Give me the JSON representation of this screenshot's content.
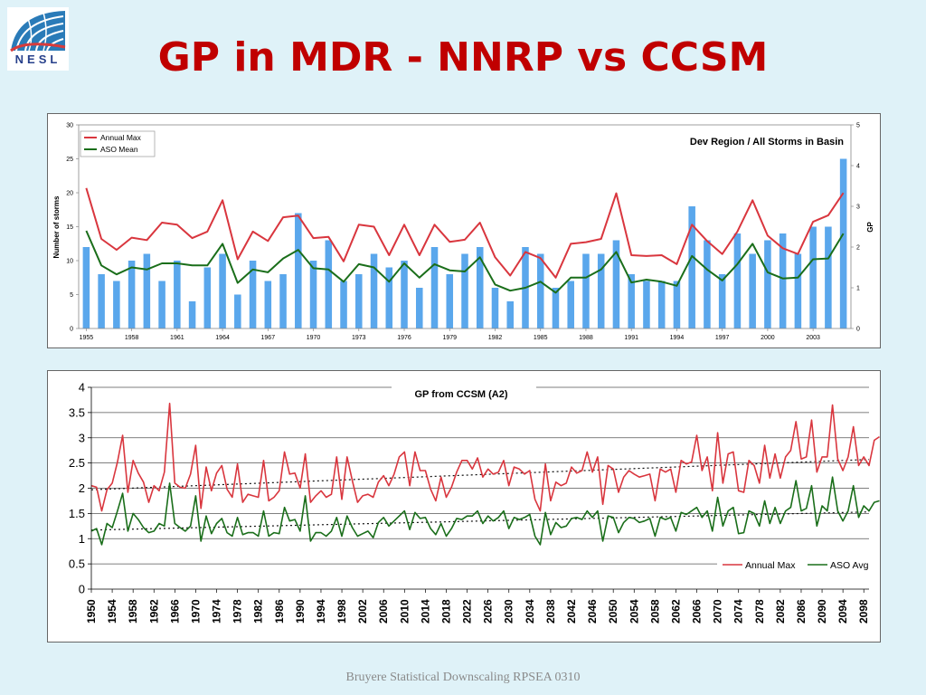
{
  "logo": {
    "text": "NESL"
  },
  "slide": {
    "title": "GP in MDR - NNRP vs CCSM",
    "footer": "Bruyere Statistical Downscaling RPSEA 0310"
  },
  "colors": {
    "title": "#c00000",
    "bar": "#5aa7ec",
    "max_line": "#d9363e",
    "mean_line": "#1a6e1a",
    "trend": "#111111"
  },
  "chart_data": [
    {
      "type": "bar",
      "title": "Dev Region / All Storms in Basin",
      "ylabel": "Number of storms",
      "y2label": "GP",
      "ylim": [
        0,
        30
      ],
      "y2lim": [
        0,
        5
      ],
      "yticks": [
        "0",
        "5",
        "10",
        "15",
        "20",
        "25",
        "30"
      ],
      "y2ticks": [
        "0",
        "1",
        "2",
        "3",
        "4",
        "5"
      ],
      "xtick_labels": [
        "1955",
        "1958",
        "1961",
        "1964",
        "1967",
        "1970",
        "1973",
        "1976",
        "1979",
        "1982",
        "1985",
        "1988",
        "1991",
        "1994",
        "1997",
        "2000",
        "2003"
      ],
      "grid": false,
      "legend_position": "top-left",
      "x": [
        1955,
        1956,
        1957,
        1958,
        1959,
        1960,
        1961,
        1962,
        1963,
        1964,
        1965,
        1966,
        1967,
        1968,
        1969,
        1970,
        1971,
        1972,
        1973,
        1974,
        1975,
        1976,
        1977,
        1978,
        1979,
        1980,
        1981,
        1982,
        1983,
        1984,
        1985,
        1986,
        1987,
        1988,
        1989,
        1990,
        1991,
        1992,
        1993,
        1994,
        1995,
        1996,
        1997,
        1998,
        1999,
        2000,
        2001,
        2002,
        2003,
        2004,
        2005
      ],
      "series": [
        {
          "type": "bar",
          "axis": "left",
          "values": [
            12,
            8,
            7,
            10,
            11,
            7,
            10,
            4,
            9,
            11,
            5,
            10,
            7,
            8,
            17,
            10,
            13,
            7,
            8,
            11,
            9,
            10,
            6,
            12,
            8,
            11,
            12,
            6,
            4,
            12,
            11,
            6,
            7,
            11,
            11,
            13,
            8,
            7,
            7,
            7,
            18,
            13,
            8,
            14,
            11,
            13,
            14,
            11,
            15,
            15,
            25
          ]
        },
        {
          "type": "line",
          "axis": "right",
          "name": "Annual Max",
          "values": [
            3.45,
            2.2,
            1.93,
            2.23,
            2.17,
            2.6,
            2.55,
            2.22,
            2.38,
            3.15,
            1.7,
            2.38,
            2.15,
            2.73,
            2.77,
            2.22,
            2.25,
            1.65,
            2.55,
            2.5,
            1.8,
            2.55,
            1.8,
            2.55,
            2.13,
            2.18,
            2.6,
            1.75,
            1.3,
            1.88,
            1.73,
            1.25,
            2.08,
            2.12,
            2.2,
            3.32,
            1.8,
            1.78,
            1.8,
            1.58,
            2.55,
            2.15,
            1.83,
            2.38,
            3.15,
            2.28,
            1.97,
            1.83,
            2.62,
            2.78,
            3.33
          ]
        },
        {
          "type": "line",
          "axis": "right",
          "name": "ASO Mean",
          "values": [
            2.4,
            1.55,
            1.33,
            1.5,
            1.45,
            1.6,
            1.6,
            1.55,
            1.55,
            2.08,
            1.12,
            1.45,
            1.38,
            1.72,
            1.93,
            1.48,
            1.45,
            1.15,
            1.58,
            1.5,
            1.15,
            1.6,
            1.25,
            1.58,
            1.43,
            1.4,
            1.75,
            1.08,
            0.93,
            1.0,
            1.15,
            0.88,
            1.25,
            1.25,
            1.45,
            1.88,
            1.13,
            1.2,
            1.15,
            1.05,
            1.78,
            1.45,
            1.18,
            1.58,
            2.08,
            1.38,
            1.23,
            1.25,
            1.7,
            1.72,
            2.33
          ]
        }
      ]
    },
    {
      "type": "line",
      "title": "GP from CCSM (A2)",
      "ylim": [
        0,
        4
      ],
      "yticks": [
        "0",
        "0.5",
        "1",
        "1.5",
        "2",
        "2.5",
        "3",
        "3.5",
        "4"
      ],
      "xtick_labels": [
        "1950",
        "1954",
        "1958",
        "1962",
        "1966",
        "1970",
        "1974",
        "1978",
        "1982",
        "1986",
        "1990",
        "1994",
        "1998",
        "2002",
        "2006",
        "2010",
        "2014",
        "2018",
        "2022",
        "2026",
        "2030",
        "2034",
        "2038",
        "2042",
        "2046",
        "2050",
        "2054",
        "2058",
        "2062",
        "2066",
        "2070",
        "2074",
        "2078",
        "2082",
        "2086",
        "2090",
        "2094",
        "2098"
      ],
      "grid": "horizontal",
      "legend_position": "bottom-right",
      "x_start": 1950,
      "x_end": 2099,
      "series": [
        {
          "name": "Annual Max",
          "values": [
            2.05,
            2.02,
            1.55,
            1.97,
            2.1,
            2.52,
            3.05,
            1.92,
            2.55,
            2.3,
            2.12,
            1.72,
            2.05,
            1.95,
            2.32,
            3.68,
            2.1,
            2.02,
            2.0,
            2.28,
            2.85,
            1.6,
            2.42,
            1.95,
            2.3,
            2.45,
            1.98,
            1.82,
            2.48,
            1.72,
            1.88,
            1.85,
            1.82,
            2.55,
            1.75,
            1.82,
            1.95,
            2.72,
            2.28,
            2.3,
            2.0,
            2.68,
            1.72,
            1.85,
            1.95,
            1.82,
            1.88,
            2.62,
            1.78,
            2.62,
            2.15,
            1.72,
            1.85,
            1.88,
            1.82,
            2.12,
            2.25,
            2.05,
            2.28,
            2.62,
            2.72,
            2.05,
            2.72,
            2.35,
            2.35,
            1.98,
            1.75,
            2.22,
            1.82,
            2.02,
            2.32,
            2.55,
            2.55,
            2.38,
            2.6,
            2.22,
            2.38,
            2.28,
            2.32,
            2.55,
            2.05,
            2.42,
            2.38,
            2.28,
            2.35,
            1.78,
            1.55,
            2.48,
            1.75,
            2.12,
            2.05,
            2.1,
            2.42,
            2.3,
            2.35,
            2.72,
            2.32,
            2.62,
            1.68,
            2.45,
            2.38,
            1.92,
            2.22,
            2.35,
            2.28,
            2.22,
            2.25,
            2.28,
            1.75,
            2.38,
            2.32,
            2.38,
            1.92,
            2.55,
            2.48,
            2.52,
            3.05,
            2.35,
            2.62,
            1.95,
            3.1,
            2.1,
            2.68,
            2.72,
            1.95,
            1.92,
            2.55,
            2.45,
            2.1,
            2.85,
            2.2,
            2.68,
            2.2,
            2.62,
            2.75,
            3.32,
            2.58,
            2.62,
            3.35,
            2.32,
            2.62,
            2.62,
            3.65,
            2.58,
            2.35,
            2.62,
            3.22,
            2.45,
            2.62,
            2.45,
            2.95,
            3.02
          ]
        },
        {
          "name": "ASO Avg",
          "values": [
            1.15,
            1.2,
            0.88,
            1.3,
            1.22,
            1.55,
            1.9,
            1.15,
            1.5,
            1.38,
            1.22,
            1.12,
            1.15,
            1.3,
            1.25,
            2.1,
            1.3,
            1.22,
            1.15,
            1.25,
            1.85,
            0.95,
            1.45,
            1.1,
            1.3,
            1.4,
            1.12,
            1.05,
            1.42,
            1.08,
            1.12,
            1.12,
            1.05,
            1.55,
            1.05,
            1.12,
            1.1,
            1.62,
            1.35,
            1.38,
            1.15,
            1.85,
            0.95,
            1.12,
            1.12,
            1.05,
            1.15,
            1.42,
            1.05,
            1.45,
            1.22,
            1.05,
            1.1,
            1.15,
            1.02,
            1.32,
            1.42,
            1.25,
            1.35,
            1.45,
            1.55,
            1.18,
            1.52,
            1.4,
            1.42,
            1.2,
            1.08,
            1.3,
            1.05,
            1.2,
            1.4,
            1.38,
            1.45,
            1.45,
            1.55,
            1.3,
            1.45,
            1.35,
            1.42,
            1.55,
            1.2,
            1.42,
            1.38,
            1.42,
            1.48,
            1.05,
            0.88,
            1.52,
            1.08,
            1.32,
            1.22,
            1.25,
            1.4,
            1.42,
            1.38,
            1.55,
            1.42,
            1.55,
            0.95,
            1.45,
            1.42,
            1.12,
            1.32,
            1.42,
            1.4,
            1.32,
            1.35,
            1.4,
            1.05,
            1.42,
            1.38,
            1.42,
            1.15,
            1.52,
            1.48,
            1.55,
            1.62,
            1.42,
            1.55,
            1.15,
            1.82,
            1.25,
            1.55,
            1.62,
            1.1,
            1.12,
            1.55,
            1.5,
            1.25,
            1.75,
            1.3,
            1.62,
            1.3,
            1.55,
            1.62,
            2.15,
            1.55,
            1.6,
            2.05,
            1.25,
            1.65,
            1.55,
            2.22,
            1.55,
            1.35,
            1.55,
            2.05,
            1.42,
            1.65,
            1.55,
            1.72,
            1.75
          ]
        }
      ],
      "trend_lines": [
        {
          "of": "Annual Max",
          "from": 1.97,
          "to": 2.57
        },
        {
          "of": "ASO Avg",
          "from": 1.17,
          "to": 1.53
        }
      ]
    }
  ]
}
